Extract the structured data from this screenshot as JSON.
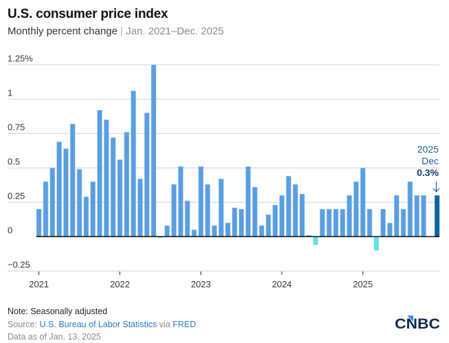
{
  "header": {
    "title": "U.S. consumer price index",
    "subtitle_main": "Monthly percent change",
    "subtitle_sep": "|",
    "subtitle_range": "Jan. 2021–Dec. 2025"
  },
  "footer": {
    "note": "Note: Seasonally adjusted",
    "source_prefix": "Source:",
    "source_link_1": "U.S. Bureau of Labor Statistics",
    "source_via": "via",
    "source_link_2": "FRED",
    "as_of": "Data as of Jan. 13, 2025"
  },
  "logo": {
    "text": "CNBC",
    "accent_color": "#2f8fe8",
    "color": "#0d2a4d"
  },
  "colors": {
    "bar": "#5a9ee0",
    "bar_outline": "#a9cdf2",
    "negative_bar": "#5ee0ec",
    "highlight_bar": "#0f619f",
    "gridline": "#d0d0d0",
    "baseline": "#111111"
  },
  "chart_data": {
    "type": "bar",
    "title": "U.S. consumer price index",
    "subtitle": "Monthly percent change | Jan. 2021–Dec. 2025",
    "xlabel": "",
    "ylabel": "",
    "ylim": [
      -0.25,
      1.25
    ],
    "yticks": [
      {
        "value": 1.25,
        "label": "1.25%"
      },
      {
        "value": 1,
        "label": "1"
      },
      {
        "value": 0.75,
        "label": "0.75"
      },
      {
        "value": 0.5,
        "label": "0.5"
      },
      {
        "value": 0.25,
        "label": "0.25"
      },
      {
        "value": 0,
        "label": "0"
      },
      {
        "value": -0.25,
        "label": "−0.25"
      }
    ],
    "xticks": [
      {
        "index": 0,
        "label": "2021"
      },
      {
        "index": 12,
        "label": "2022"
      },
      {
        "index": 24,
        "label": "2023"
      },
      {
        "index": 36,
        "label": "2024"
      },
      {
        "index": 48,
        "label": "2025"
      }
    ],
    "grid": true,
    "categories": [
      "Jan 2021",
      "Feb 2021",
      "Mar 2021",
      "Apr 2021",
      "May 2021",
      "Jun 2021",
      "Jul 2021",
      "Aug 2021",
      "Sep 2021",
      "Oct 2021",
      "Nov 2021",
      "Dec 2021",
      "Jan 2022",
      "Feb 2022",
      "Mar 2022",
      "Apr 2022",
      "May 2022",
      "Jun 2022",
      "Jul 2022",
      "Aug 2022",
      "Sep 2022",
      "Oct 2022",
      "Nov 2022",
      "Dec 2022",
      "Jan 2023",
      "Feb 2023",
      "Mar 2023",
      "Apr 2023",
      "May 2023",
      "Jun 2023",
      "Jul 2023",
      "Aug 2023",
      "Sep 2023",
      "Oct 2023",
      "Nov 2023",
      "Dec 2023",
      "Jan 2024",
      "Feb 2024",
      "Mar 2024",
      "Apr 2024",
      "May 2024",
      "Jun 2024",
      "Jul 2024",
      "Aug 2024",
      "Sep 2024",
      "Oct 2024",
      "Nov 2024",
      "Dec 2024",
      "Jan 2025",
      "Feb 2025",
      "Mar 2025",
      "Apr 2025",
      "May 2025",
      "Jun 2025",
      "Jul 2025",
      "Aug 2025",
      "Sep 2025",
      "Oct 2025",
      "Nov 2025",
      "Dec 2025"
    ],
    "values": [
      0.2,
      0.4,
      0.5,
      0.69,
      0.64,
      0.82,
      0.49,
      0.29,
      0.4,
      0.92,
      0.85,
      0.72,
      0.56,
      0.76,
      1.06,
      0.42,
      0.9,
      1.25,
      -0.01,
      0.08,
      0.38,
      0.51,
      0.26,
      0.05,
      0.51,
      0.38,
      0.08,
      0.42,
      0.1,
      0.21,
      0.2,
      0.51,
      0.36,
      0.08,
      0.16,
      0.23,
      0.3,
      0.44,
      0.38,
      0.31,
      0.01,
      -0.06,
      0.2,
      0.2,
      0.2,
      0.2,
      0.3,
      0.4,
      0.5,
      0.2,
      -0.1,
      0.2,
      0.1,
      0.3,
      0.2,
      0.4,
      0.3,
      0.3,
      null,
      0.3
    ],
    "highlight_index": 59,
    "annotation": {
      "year": "2025",
      "month": "Dec",
      "value_label": "0.3%",
      "arrow": "↓"
    }
  }
}
